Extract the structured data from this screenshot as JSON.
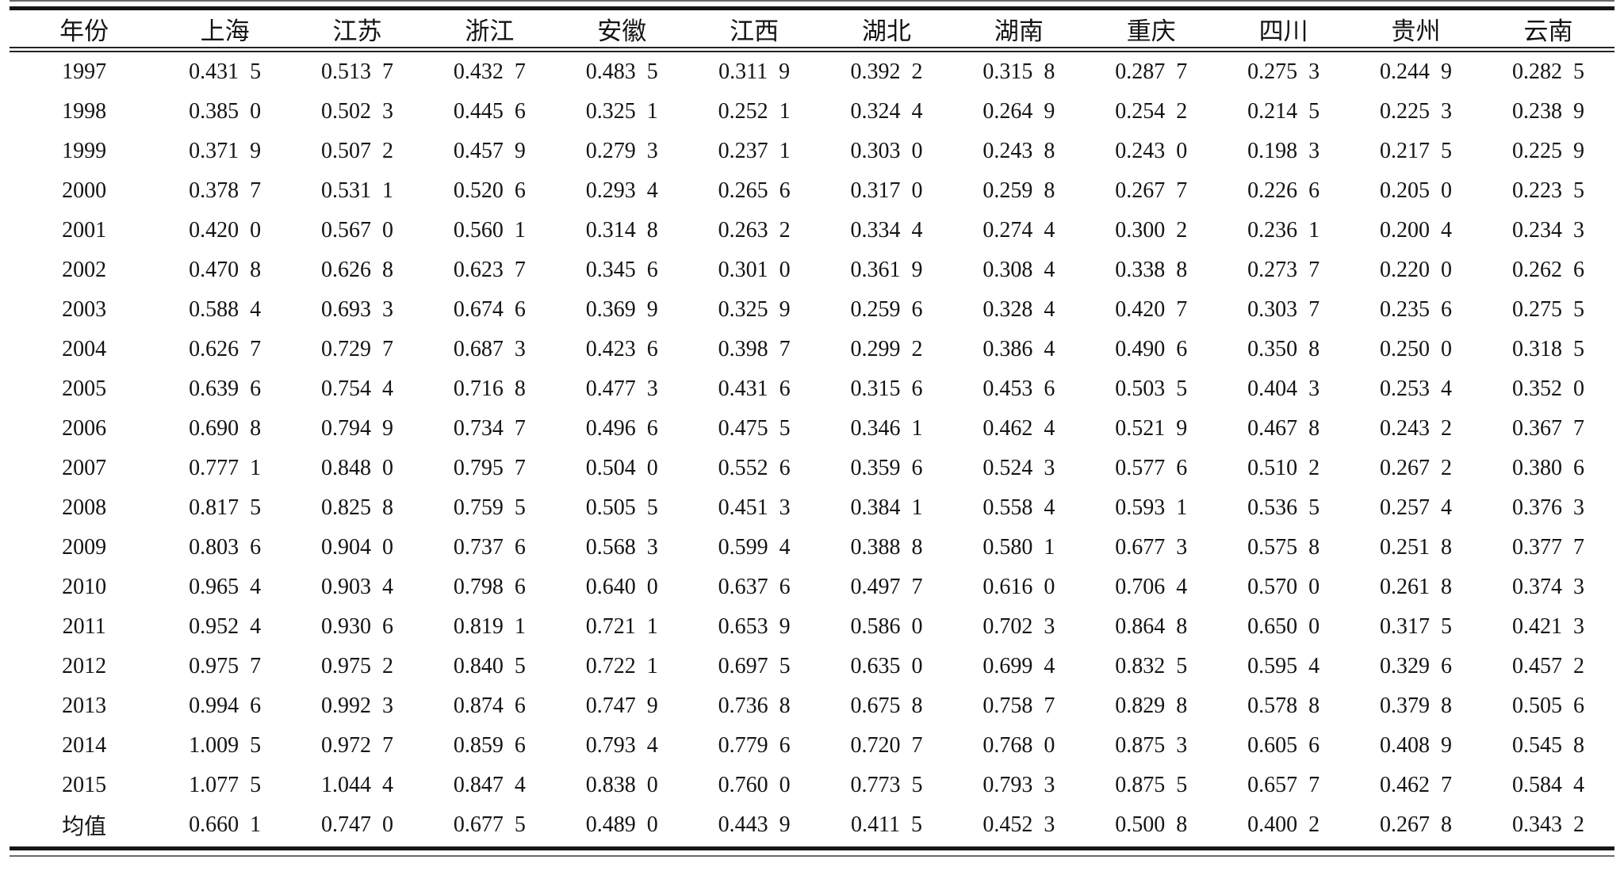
{
  "table": {
    "columns": [
      "年份",
      "上海",
      "江苏",
      "浙江",
      "安徽",
      "江西",
      "湖北",
      "湖南",
      "重庆",
      "四川",
      "贵州",
      "云南"
    ],
    "mean_row_label": "均值",
    "rows": [
      [
        "1997",
        "0.431 5",
        "0.513 7",
        "0.432 7",
        "0.483 5",
        "0.311 9",
        "0.392 2",
        "0.315 8",
        "0.287 7",
        "0.275 3",
        "0.244 9",
        "0.282 5"
      ],
      [
        "1998",
        "0.385 0",
        "0.502 3",
        "0.445 6",
        "0.325 1",
        "0.252 1",
        "0.324 4",
        "0.264 9",
        "0.254 2",
        "0.214 5",
        "0.225 3",
        "0.238 9"
      ],
      [
        "1999",
        "0.371 9",
        "0.507 2",
        "0.457 9",
        "0.279 3",
        "0.237 1",
        "0.303 0",
        "0.243 8",
        "0.243 0",
        "0.198 3",
        "0.217 5",
        "0.225 9"
      ],
      [
        "2000",
        "0.378 7",
        "0.531 1",
        "0.520 6",
        "0.293 4",
        "0.265 6",
        "0.317 0",
        "0.259 8",
        "0.267 7",
        "0.226 6",
        "0.205 0",
        "0.223 5"
      ],
      [
        "2001",
        "0.420 0",
        "0.567 0",
        "0.560 1",
        "0.314 8",
        "0.263 2",
        "0.334 4",
        "0.274 4",
        "0.300 2",
        "0.236 1",
        "0.200 4",
        "0.234 3"
      ],
      [
        "2002",
        "0.470 8",
        "0.626 8",
        "0.623 7",
        "0.345 6",
        "0.301 0",
        "0.361 9",
        "0.308 4",
        "0.338 8",
        "0.273 7",
        "0.220 0",
        "0.262 6"
      ],
      [
        "2003",
        "0.588 4",
        "0.693 3",
        "0.674 6",
        "0.369 9",
        "0.325 9",
        "0.259 6",
        "0.328 4",
        "0.420 7",
        "0.303 7",
        "0.235 6",
        "0.275 5"
      ],
      [
        "2004",
        "0.626 7",
        "0.729 7",
        "0.687 3",
        "0.423 6",
        "0.398 7",
        "0.299 2",
        "0.386 4",
        "0.490 6",
        "0.350 8",
        "0.250 0",
        "0.318 5"
      ],
      [
        "2005",
        "0.639 6",
        "0.754 4",
        "0.716 8",
        "0.477 3",
        "0.431 6",
        "0.315 6",
        "0.453 6",
        "0.503 5",
        "0.404 3",
        "0.253 4",
        "0.352 0"
      ],
      [
        "2006",
        "0.690 8",
        "0.794 9",
        "0.734 7",
        "0.496 6",
        "0.475 5",
        "0.346 1",
        "0.462 4",
        "0.521 9",
        "0.467 8",
        "0.243 2",
        "0.367 7"
      ],
      [
        "2007",
        "0.777 1",
        "0.848 0",
        "0.795 7",
        "0.504 0",
        "0.552 6",
        "0.359 6",
        "0.524 3",
        "0.577 6",
        "0.510 2",
        "0.267 2",
        "0.380 6"
      ],
      [
        "2008",
        "0.817 5",
        "0.825 8",
        "0.759 5",
        "0.505 5",
        "0.451 3",
        "0.384 1",
        "0.558 4",
        "0.593 1",
        "0.536 5",
        "0.257 4",
        "0.376 3"
      ],
      [
        "2009",
        "0.803 6",
        "0.904 0",
        "0.737 6",
        "0.568 3",
        "0.599 4",
        "0.388 8",
        "0.580 1",
        "0.677 3",
        "0.575 8",
        "0.251 8",
        "0.377 7"
      ],
      [
        "2010",
        "0.965 4",
        "0.903 4",
        "0.798 6",
        "0.640 0",
        "0.637 6",
        "0.497 7",
        "0.616 0",
        "0.706 4",
        "0.570 0",
        "0.261 8",
        "0.374 3"
      ],
      [
        "2011",
        "0.952 4",
        "0.930 6",
        "0.819 1",
        "0.721 1",
        "0.653 9",
        "0.586 0",
        "0.702 3",
        "0.864 8",
        "0.650 0",
        "0.317 5",
        "0.421 3"
      ],
      [
        "2012",
        "0.975 7",
        "0.975 2",
        "0.840 5",
        "0.722 1",
        "0.697 5",
        "0.635 0",
        "0.699 4",
        "0.832 5",
        "0.595 4",
        "0.329 6",
        "0.457 2"
      ],
      [
        "2013",
        "0.994 6",
        "0.992 3",
        "0.874 6",
        "0.747 9",
        "0.736 8",
        "0.675 8",
        "0.758 7",
        "0.829 8",
        "0.578 8",
        "0.379 8",
        "0.505 6"
      ],
      [
        "2014",
        "1.009 5",
        "0.972 7",
        "0.859 6",
        "0.793 4",
        "0.779 6",
        "0.720 7",
        "0.768 0",
        "0.875 3",
        "0.605 6",
        "0.408 9",
        "0.545 8"
      ],
      [
        "2015",
        "1.077 5",
        "1.044 4",
        "0.847 4",
        "0.838 0",
        "0.760 0",
        "0.773 5",
        "0.793 3",
        "0.875 5",
        "0.657 7",
        "0.462 7",
        "0.584 4"
      ],
      [
        "均值",
        "0.660 1",
        "0.747 0",
        "0.677 5",
        "0.489 0",
        "0.443 9",
        "0.411 5",
        "0.452 3",
        "0.500 8",
        "0.400 2",
        "0.267 8",
        "0.343 2"
      ]
    ]
  }
}
